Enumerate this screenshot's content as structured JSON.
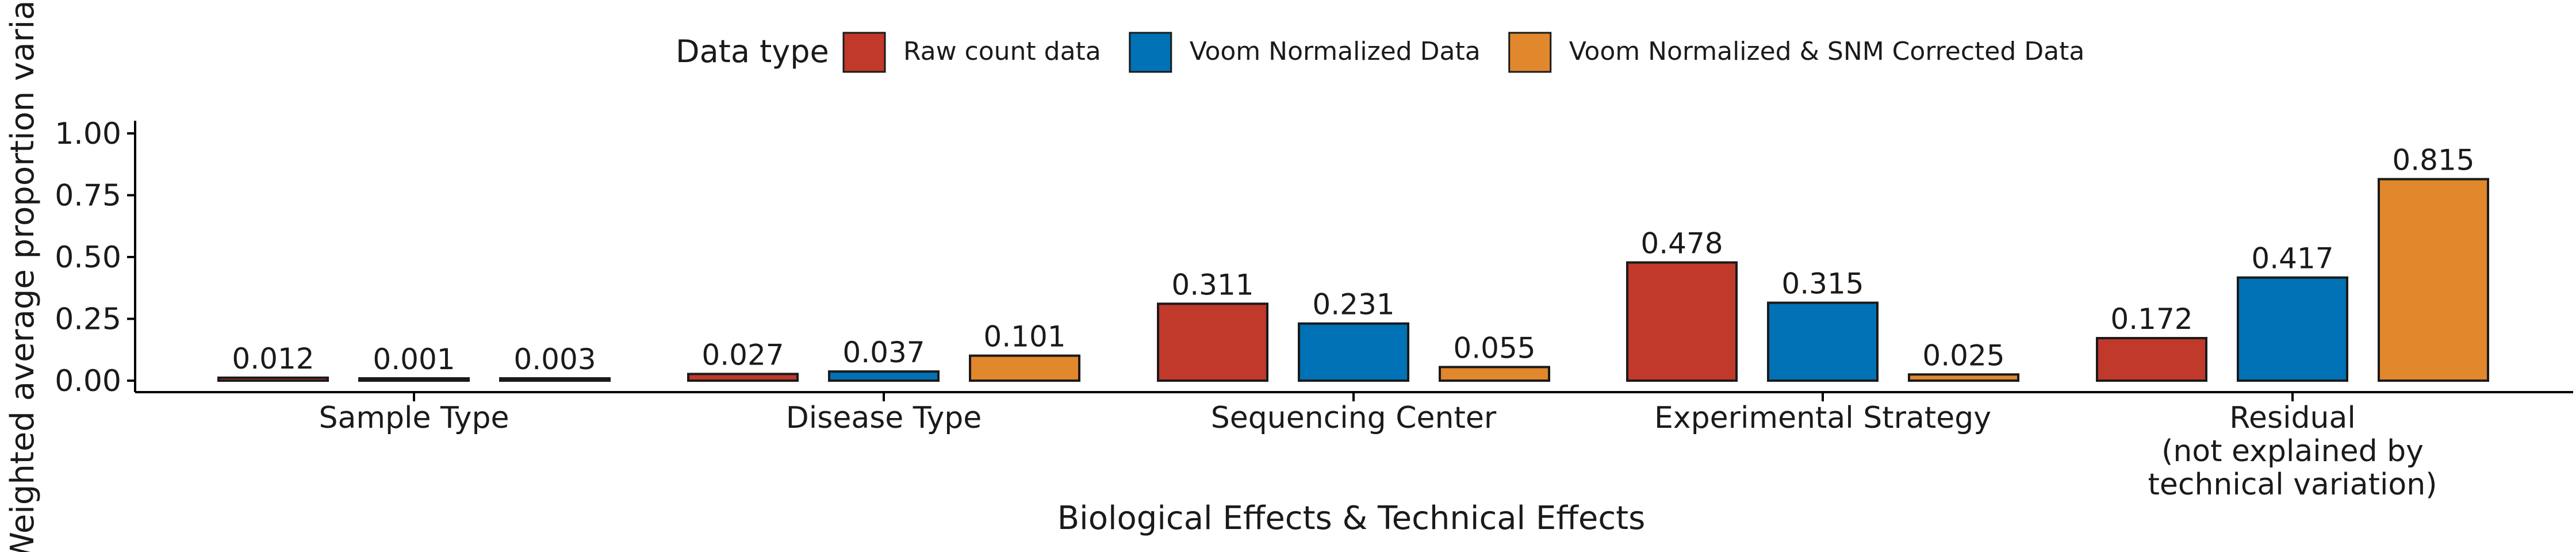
{
  "legend": {
    "title": "Data type",
    "items": [
      {
        "label": "Raw count data",
        "color": "#C0392B"
      },
      {
        "label": "Voom Normalized Data",
        "color": "#0072B5"
      },
      {
        "label": "Voom Normalized & SNM Corrected Data",
        "color": "#E1872C"
      }
    ]
  },
  "chart_data": {
    "type": "bar",
    "ylabel": "Weighted average proportion variance",
    "xlabel": "Biological Effects & Technical Effects",
    "ylim": [
      0,
      1.0
    ],
    "yticks": [
      "0.00",
      "0.25",
      "0.50",
      "0.75",
      "1.00"
    ],
    "grid": false,
    "legend_position": "top",
    "categories": [
      [
        "Sample Type"
      ],
      [
        "Disease Type"
      ],
      [
        "Sequencing Center"
      ],
      [
        "Experimental Strategy"
      ],
      [
        "Residual",
        "(not explained by",
        "technical variation)"
      ]
    ],
    "series": [
      {
        "name": "Raw count data",
        "values": [
          0.012,
          0.027,
          0.311,
          0.478,
          0.172
        ],
        "labels": [
          "0.012",
          "0.027",
          "0.311",
          "0.478",
          "0.172"
        ]
      },
      {
        "name": "Voom Normalized Data",
        "values": [
          0.001,
          0.037,
          0.231,
          0.315,
          0.417
        ],
        "labels": [
          "0.001",
          "0.037",
          "0.231",
          "0.315",
          "0.417"
        ]
      },
      {
        "name": "Voom Normalized & SNM Corrected Data",
        "values": [
          0.003,
          0.101,
          0.055,
          0.025,
          0.815
        ],
        "labels": [
          "0.003",
          "0.101",
          "0.055",
          "0.025",
          "0.815"
        ]
      }
    ]
  }
}
